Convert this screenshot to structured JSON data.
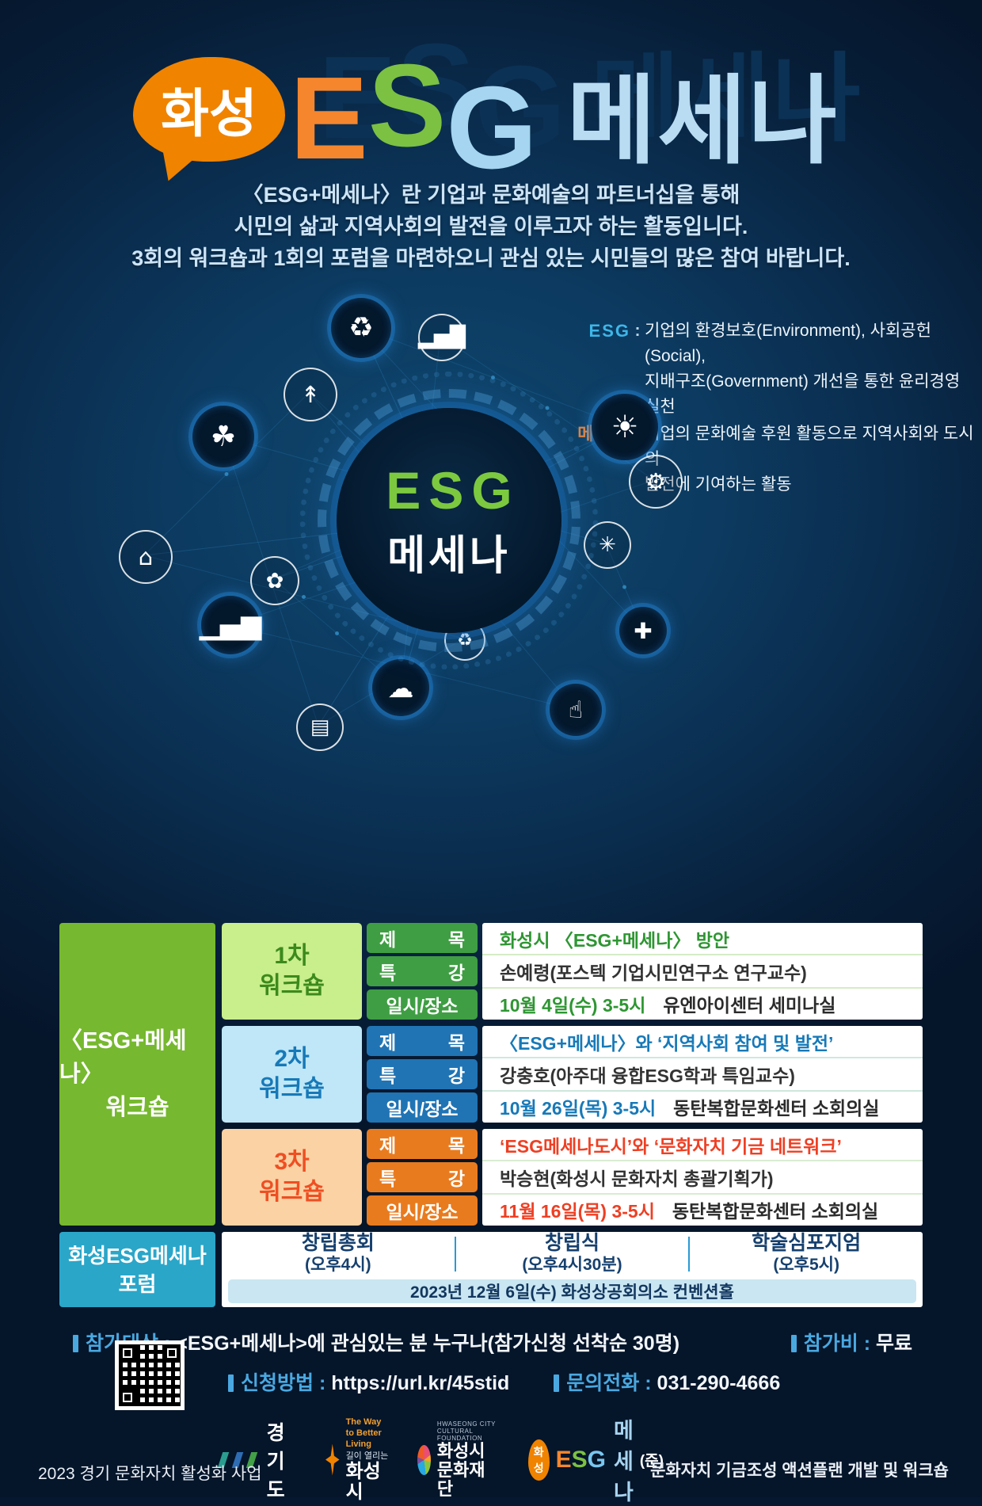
{
  "title": {
    "bubble": "화성",
    "esg_letters": [
      "E",
      "S",
      "G"
    ],
    "mecenat": "메세나"
  },
  "intro_lines": [
    "〈ESG+메세나〉란 기업과 문화예술의 파트너십을 통해",
    "시민의 삶과 지역사회의 발전을 이루고자 하는 활동입니다.",
    "3회의 워크숍과 1회의 포럼을 마련하오니 관심 있는 시민들의 많은 참여 바랍니다."
  ],
  "definitions": [
    {
      "term": "ESG",
      "colon": ":",
      "line1": "기업의 환경보호(Environment), 사회공헌(Social),",
      "line2": "지배구조(Government) 개선을 통한 윤리경영 실천"
    },
    {
      "term": "메세나",
      "colon": ":",
      "line1": "기업의 문화예술 후원 활동으로 지역사회와 도시의",
      "line2": "발전에 기여하는 활동"
    }
  ],
  "center_graphic": {
    "line1": "ESG",
    "line2": "메세나"
  },
  "icons": {
    "recycle-icon": "♻",
    "bar-chart-icon": "▂▅█",
    "wind-turbine-icon": "↟",
    "leaf-icon": "☘",
    "solar-panel-icon": "☀",
    "gears-icon": "⚙",
    "factory-icon": "⌂",
    "network-icon": "✳",
    "plant-icon": "✿",
    "growth-chart-icon": "▁▄▆",
    "recycle-small-icon": "♻",
    "plus-icon": "✚",
    "landscape-icon": "☁",
    "hand-icon": "☝",
    "building-icon": "▤"
  },
  "workshop_table": {
    "header_line1": "〈ESG+메세나〉",
    "header_line2": "워크숍",
    "row_labels": [
      [
        "제",
        "목"
      ],
      [
        "특",
        "강"
      ],
      [
        "일시/장소"
      ]
    ],
    "rows": [
      {
        "stage_line1": "1차",
        "stage_line2": "워크숍",
        "title": "화성시 〈ESG+메세나〉 방안",
        "lecturer": "손예령(포스텍 기업시민연구소 연구교수)",
        "datetime": "10월 4일(수) 3-5시",
        "venue": "유엔아이센터 세미나실"
      },
      {
        "stage_line1": "2차",
        "stage_line2": "워크숍",
        "title": "〈ESG+메세나〉와 ‘지역사회 참여 및 발전’",
        "lecturer": "강충호(아주대 융합ESG학과 특임교수)",
        "datetime": "10월 26일(목) 3-5시",
        "venue": "동탄복합문화센터 소회의실"
      },
      {
        "stage_line1": "3차",
        "stage_line2": "워크숍",
        "title": "‘ESG메세나도시’와 ‘문화자치 기금 네트워크’",
        "lecturer": "박승현(화성시 문화자치 총괄기획가)",
        "datetime": "11월 16일(목) 3-5시",
        "venue": "동탄복합문화센터 소회의실"
      }
    ]
  },
  "forum": {
    "header_line1": "화성ESG메세나",
    "header_line2": "포럼",
    "events": [
      {
        "name": "창립총회",
        "time": "(오후4시)"
      },
      {
        "name": "창립식",
        "time": "(오후4시30분)"
      },
      {
        "name": "학술심포지엄",
        "time": "(오후5시)"
      }
    ],
    "date_venue": "2023년 12월 6일(수)   화성상공회의소 컨벤션홀"
  },
  "footer": {
    "target_label": "참가대상",
    "target_colon": ":",
    "target_value": "<ESG+메세나>에 관심있는 분 누구나(참가신청 선착순 30명)",
    "fee_label": "참가비",
    "fee_colon": ":",
    "fee_value": "무료",
    "apply_label": "신청방법",
    "apply_colon": ":",
    "apply_value": "https://url.kr/45stid",
    "phone_label": "문의전화",
    "phone_colon": ":",
    "phone_value": "031-290-4666",
    "logos": [
      {
        "label": "경기도"
      },
      {
        "tagline": "The Way to Better Living",
        "sub": "길이 열리는",
        "label": "화성시"
      },
      {
        "sub": "HWASEONG CITY CULTURAL FOUNDATION",
        "label": "화성시문화재단"
      },
      {
        "bubble": "화성",
        "letters": [
          "E",
          "S",
          "G"
        ],
        "label": "메세나",
        "suffix": "(준)"
      }
    ],
    "bottom_left": "2023 경기 문화자치 활성화 사업",
    "bottom_right": "문화자치 기금조성 액션플랜 개발 및 워크숍"
  },
  "colors": {
    "background_navy": "#0a2c4d",
    "orange_accent": "#f08300",
    "green_accent": "#7cc142",
    "light_blue_accent": "#a5d5f0",
    "esg_label_blue": "#3db6e8",
    "mecenat_label_orange": "#e8833a",
    "workshop_green": "#76b82f",
    "row1_label_green": "#3f9e43",
    "row2_label_blue": "#2074b4",
    "row3_label_orange": "#e97b1f",
    "forum_cyan": "#2aa6c9",
    "footer_label_blue": "#4aa8e0"
  }
}
